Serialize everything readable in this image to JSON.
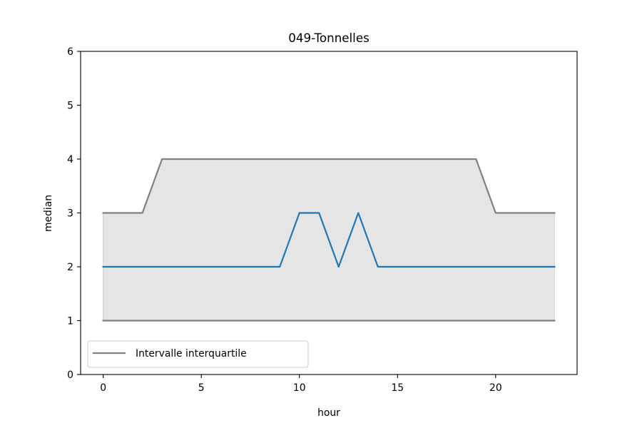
{
  "chart_data": {
    "type": "line",
    "title": "049-Tonnelles",
    "xlabel": "hour",
    "ylabel": "median",
    "xlim": [
      -1.15,
      24.15
    ],
    "ylim": [
      0,
      6
    ],
    "xticks": [
      0,
      5,
      10,
      15,
      20
    ],
    "yticks": [
      0,
      1,
      2,
      3,
      4,
      5,
      6
    ],
    "x": [
      0,
      1,
      2,
      3,
      4,
      5,
      6,
      7,
      8,
      9,
      10,
      11,
      12,
      13,
      14,
      15,
      16,
      17,
      18,
      19,
      20,
      21,
      22,
      23
    ],
    "series": [
      {
        "color": "#1f77b4",
        "values": [
          2,
          2,
          2,
          2,
          2,
          2,
          2,
          2,
          2,
          2,
          3,
          3,
          2,
          3,
          2,
          2,
          2,
          2,
          2,
          2,
          2,
          2,
          2,
          2
        ]
      },
      {
        "name": "Intervalle interquartile",
        "role": "upper quartile",
        "color": "#808080",
        "values": [
          3,
          3,
          3,
          4,
          4,
          4,
          4,
          4,
          4,
          4,
          4,
          4,
          4,
          4,
          4,
          4,
          4,
          4,
          4,
          4,
          3,
          3,
          3,
          3
        ]
      },
      {
        "role": "lower quartile",
        "color": "#808080",
        "values": [
          1,
          1,
          1,
          1,
          1,
          1,
          1,
          1,
          1,
          1,
          1,
          1,
          1,
          1,
          1,
          1,
          1,
          1,
          1,
          1,
          1,
          1,
          1,
          1
        ]
      }
    ],
    "band_fill_color": "#e5e5e5",
    "legend_position": "lower-left",
    "grid": false
  }
}
